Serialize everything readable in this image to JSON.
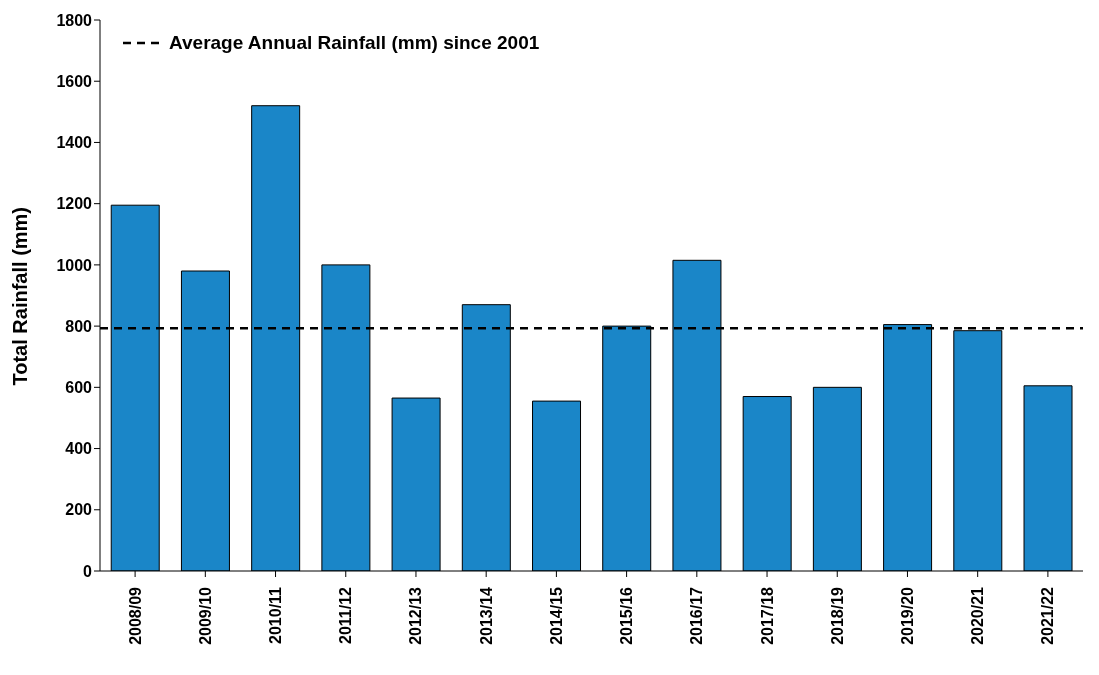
{
  "chart_data": {
    "type": "bar",
    "ylabel": "Total Rainfall (mm)",
    "categories": [
      "2008/09",
      "2009/10",
      "2010/11",
      "2011/12",
      "2012/13",
      "2013/14",
      "2014/15",
      "2015/16",
      "2016/17",
      "2017/18",
      "2018/19",
      "2019/20",
      "2020/21",
      "2021/22"
    ],
    "values": [
      1195,
      980,
      1520,
      1000,
      565,
      870,
      555,
      800,
      1015,
      570,
      600,
      805,
      785,
      605
    ],
    "color": "#1a86c8",
    "ylim": [
      0,
      1800
    ],
    "yticks": [
      0,
      200,
      400,
      600,
      800,
      1000,
      1200,
      1400,
      1600,
      1800
    ],
    "ref_lines": [
      {
        "axis": "y",
        "value": 793,
        "label": "Average Annual Rainfall (mm) since 2001",
        "color": "#000000",
        "line_style": "dashed"
      }
    ],
    "legend": "top left",
    "grid": false
  }
}
